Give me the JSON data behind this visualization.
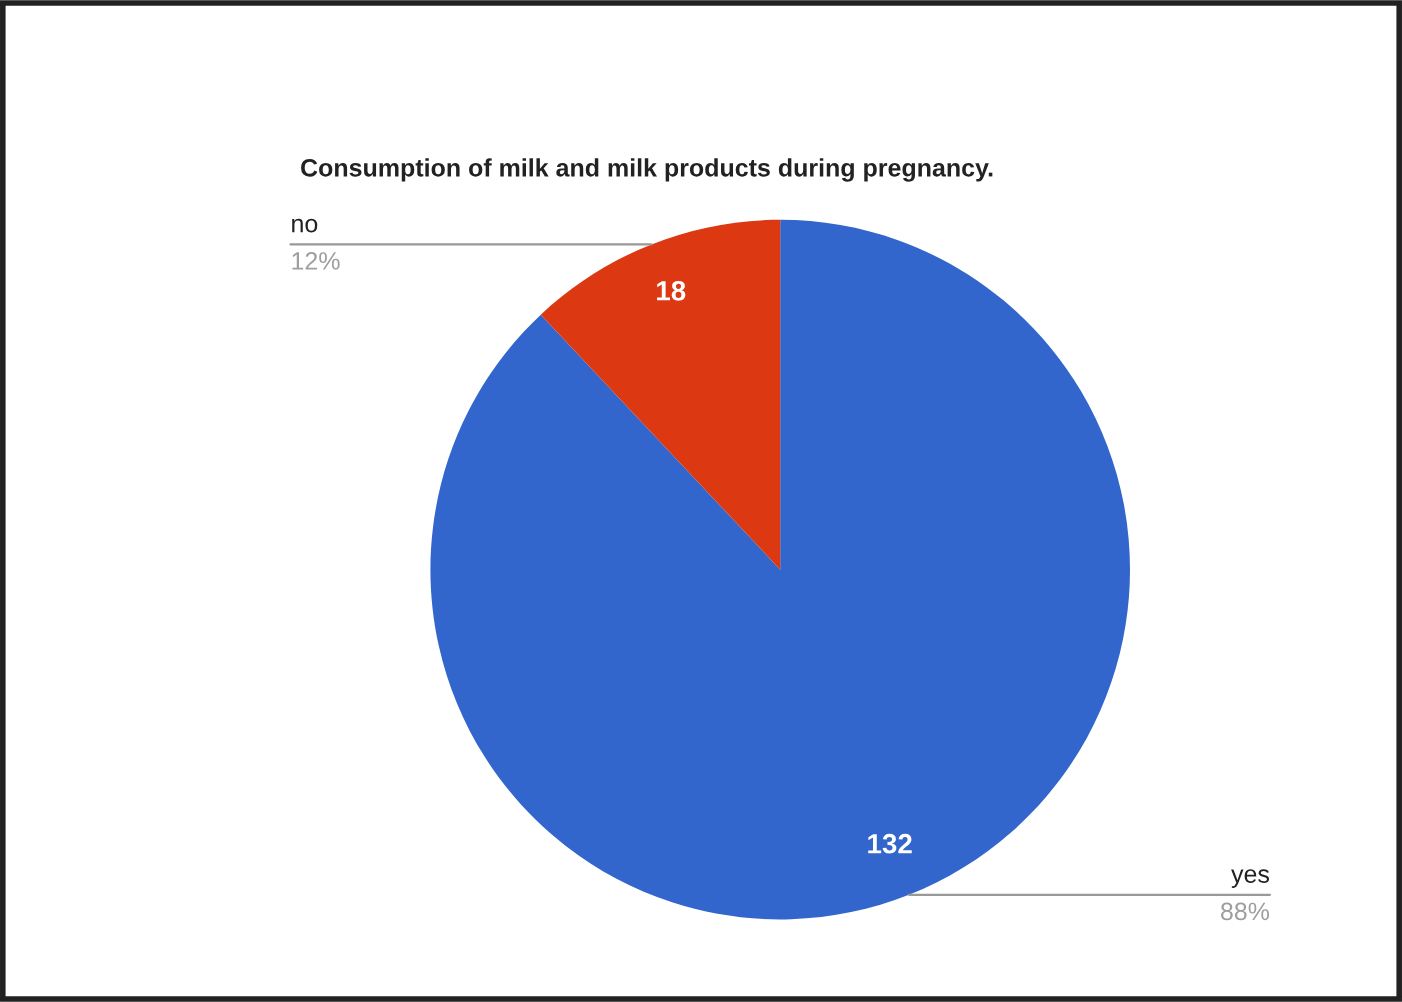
{
  "chart_data": {
    "type": "pie",
    "title": "Consumption of milk and milk products during pregnancy.",
    "categories": [
      "yes",
      "no"
    ],
    "values": [
      132,
      18
    ],
    "colors": [
      "#3366cc",
      "#dc3912"
    ],
    "data_labels": true,
    "annotations": [
      "88%",
      "12%"
    ],
    "legend": false
  }
}
